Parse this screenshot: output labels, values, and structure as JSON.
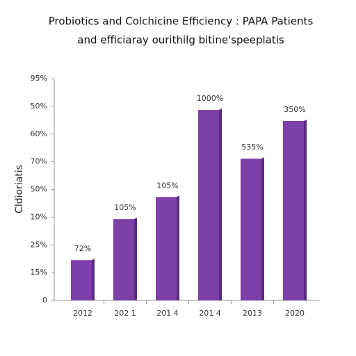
{
  "chart_data": {
    "type": "bar",
    "title": "Probiotics and Colchicine Efficiency : PAPA Patients",
    "subtitle": "and efficiaray ourithilg bitine'speeplatis",
    "y_label": "Cldioriatis",
    "categories": [
      "2012",
      "202 1",
      "201 4",
      "201 4",
      "2013",
      "2020"
    ],
    "values": [
      1.45,
      2.93,
      3.73,
      6.87,
      5.11,
      6.47
    ],
    "bar_labels": [
      "72%",
      "105%",
      "105%",
      "1000%",
      "535%",
      "350%"
    ],
    "color": "#7d3fa8",
    "ylim": [
      0,
      8
    ],
    "yticks": [
      {
        "value": 0,
        "label": "0"
      },
      {
        "value": 1,
        "label": "15%"
      },
      {
        "value": 2,
        "label": "25%"
      },
      {
        "value": 3,
        "label": "10%"
      },
      {
        "value": 4,
        "label": "50%"
      },
      {
        "value": 5,
        "label": "70%"
      },
      {
        "value": 6,
        "label": "60%"
      },
      {
        "value": 7,
        "label": "50%"
      },
      {
        "value": 8,
        "label": "95%"
      }
    ],
    "grid": false
  }
}
